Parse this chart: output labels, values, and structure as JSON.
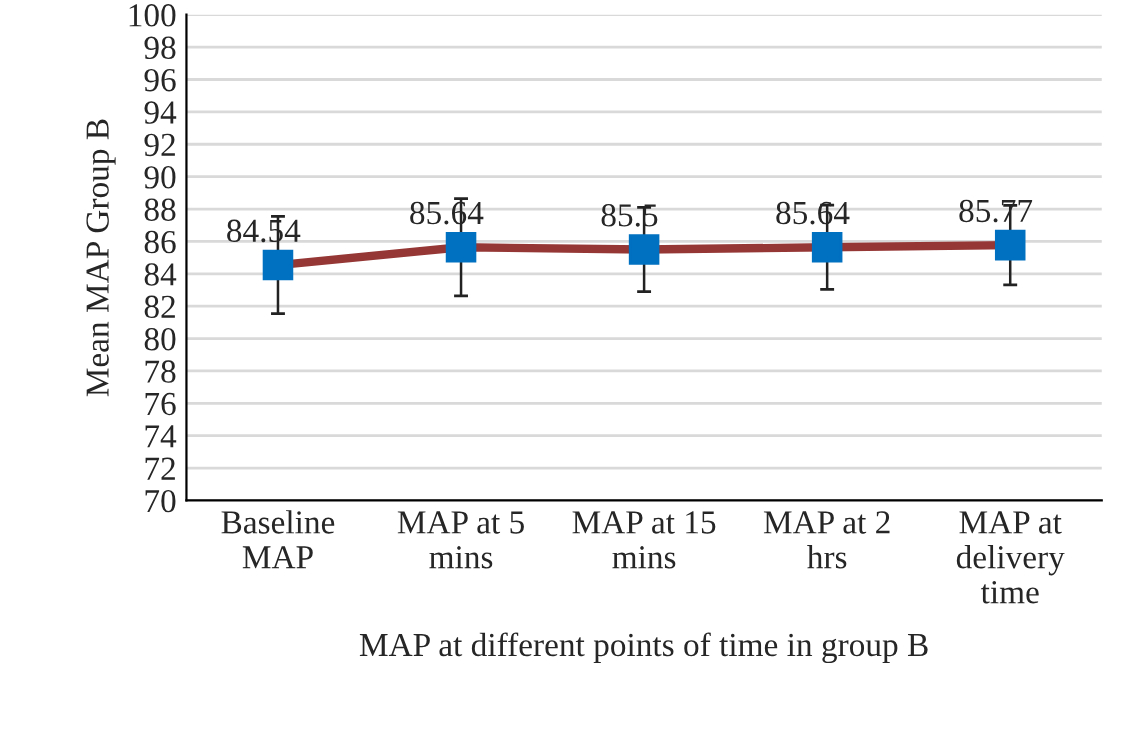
{
  "chart_data": {
    "type": "line",
    "xlabel": "MAP at different points of time in group B",
    "ylabel": "Mean MAP Group B",
    "categories": [
      "Baseline\nMAP",
      "MAP at 5\nmins",
      "MAP at 15\nmins",
      "MAP at 2\nhrs",
      "MAP at\ndelivery\ntime"
    ],
    "series": [
      {
        "color": "#953735",
        "values": [
          84.54,
          85.64,
          85.5,
          85.64,
          85.77
        ],
        "errors": [
          3.0,
          3.0,
          2.6,
          2.6,
          2.45
        ]
      }
    ],
    "ylim": [
      70,
      100
    ],
    "yticks": [
      70,
      72,
      74,
      76,
      78,
      80,
      82,
      84,
      86,
      88,
      90,
      92,
      94,
      96,
      98,
      100
    ],
    "grid": "y",
    "marker": "square",
    "line_style": "solid",
    "data_labels": true
  }
}
